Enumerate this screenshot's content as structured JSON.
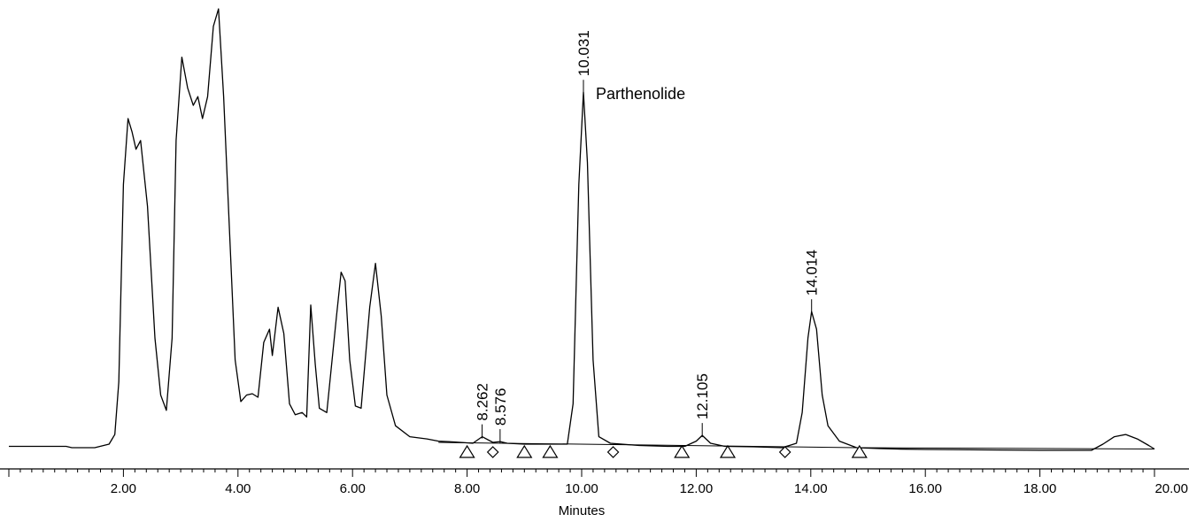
{
  "chart_data": {
    "type": "line",
    "title": "",
    "xlabel": "Minutes",
    "ylabel": "",
    "xlim": [
      0,
      20
    ],
    "ylim": [
      0,
      100
    ],
    "x_ticks": [
      2,
      4,
      6,
      8,
      10,
      12,
      14,
      16,
      18,
      20
    ],
    "x_tick_labels": [
      "2.00",
      "4.00",
      "6.00",
      "8.00",
      "10.00",
      "12.00",
      "14.00",
      "16.00",
      "18.00",
      "20.00"
    ],
    "grid": false,
    "series": [
      {
        "values": [
          [
            0,
            0.3
          ],
          [
            1.0,
            0.3
          ],
          [
            1.1,
            0.0
          ],
          [
            1.5,
            0.0
          ],
          [
            1.75,
            0.8
          ],
          [
            1.85,
            3.0
          ],
          [
            1.92,
            15.0
          ],
          [
            2.0,
            60.0
          ],
          [
            2.08,
            75.0
          ],
          [
            2.15,
            72.0
          ],
          [
            2.22,
            68.0
          ],
          [
            2.3,
            70.0
          ],
          [
            2.42,
            55.0
          ],
          [
            2.55,
            25.0
          ],
          [
            2.65,
            12.0
          ],
          [
            2.75,
            8.5
          ],
          [
            2.85,
            25.0
          ],
          [
            2.92,
            70.0
          ],
          [
            3.02,
            89.0
          ],
          [
            3.12,
            82.0
          ],
          [
            3.22,
            78.0
          ],
          [
            3.3,
            80.0
          ],
          [
            3.38,
            75.0
          ],
          [
            3.47,
            80.0
          ],
          [
            3.57,
            96.0
          ],
          [
            3.66,
            100.0
          ],
          [
            3.75,
            80.0
          ],
          [
            3.85,
            50.0
          ],
          [
            3.95,
            20.0
          ],
          [
            4.05,
            10.5
          ],
          [
            4.15,
            12.0
          ],
          [
            4.25,
            12.3
          ],
          [
            4.35,
            11.5
          ],
          [
            4.45,
            24.0
          ],
          [
            4.55,
            27.0
          ],
          [
            4.6,
            21.0
          ],
          [
            4.7,
            32.0
          ],
          [
            4.8,
            26.0
          ],
          [
            4.9,
            10.0
          ],
          [
            5.0,
            7.5
          ],
          [
            5.12,
            8.0
          ],
          [
            5.2,
            7.0
          ],
          [
            5.27,
            32.5
          ],
          [
            5.35,
            19.0
          ],
          [
            5.42,
            9.0
          ],
          [
            5.55,
            8.0
          ],
          [
            5.72,
            30.0
          ],
          [
            5.8,
            40.0
          ],
          [
            5.87,
            38.0
          ],
          [
            5.95,
            20.0
          ],
          [
            6.05,
            9.5
          ],
          [
            6.15,
            9.0
          ],
          [
            6.3,
            32.0
          ],
          [
            6.4,
            42.0
          ],
          [
            6.5,
            30.0
          ],
          [
            6.6,
            12.0
          ],
          [
            6.75,
            5.0
          ],
          [
            7.0,
            2.5
          ],
          [
            7.3,
            2.0
          ],
          [
            7.5,
            1.5
          ],
          [
            7.8,
            1.3
          ],
          [
            8.1,
            1.0
          ],
          [
            8.262,
            2.5
          ],
          [
            8.45,
            1.2
          ],
          [
            8.576,
            1.4
          ],
          [
            8.7,
            1.0
          ],
          [
            9.0,
            0.8
          ],
          [
            9.5,
            0.8
          ],
          [
            9.75,
            0.8
          ],
          [
            9.85,
            10.0
          ],
          [
            9.95,
            60.0
          ],
          [
            10.031,
            81.0
          ],
          [
            10.1,
            65.0
          ],
          [
            10.2,
            20.0
          ],
          [
            10.3,
            2.5
          ],
          [
            10.5,
            1.0
          ],
          [
            11.0,
            0.5
          ],
          [
            11.5,
            0.3
          ],
          [
            11.8,
            0.3
          ],
          [
            12.0,
            1.5
          ],
          [
            12.105,
            2.8
          ],
          [
            12.25,
            1.0
          ],
          [
            12.5,
            0.3
          ],
          [
            13.0,
            0.2
          ],
          [
            13.5,
            0.0
          ],
          [
            13.75,
            1.0
          ],
          [
            13.85,
            8.0
          ],
          [
            13.95,
            25.0
          ],
          [
            14.014,
            31.0
          ],
          [
            14.1,
            27.0
          ],
          [
            14.2,
            12.0
          ],
          [
            14.3,
            5.0
          ],
          [
            14.5,
            1.5
          ],
          [
            14.8,
            0.0
          ],
          [
            15.2,
            -0.2
          ],
          [
            15.5,
            -0.3
          ],
          [
            16.0,
            -0.4
          ],
          [
            17.0,
            -0.5
          ],
          [
            18.0,
            -0.6
          ],
          [
            18.9,
            -0.6
          ],
          [
            19.1,
            0.8
          ],
          [
            19.3,
            2.5
          ],
          [
            19.5,
            3.0
          ],
          [
            19.7,
            2.0
          ],
          [
            19.9,
            0.5
          ],
          [
            20.0,
            -0.3
          ]
        ]
      }
    ],
    "baseline_segments": [
      [
        [
          7.5,
          1.2
        ],
        [
          14.8,
          0.0
        ]
      ],
      [
        [
          14.8,
          0.0
        ],
        [
          20.0,
          -0.3
        ]
      ]
    ],
    "peak_labels": [
      {
        "x": 8.262,
        "y": 2.5,
        "text": "8.262"
      },
      {
        "x": 8.576,
        "y": 1.4,
        "text": "8.576"
      },
      {
        "x": 10.031,
        "y": 81.0,
        "text": "10.031"
      },
      {
        "x": 12.105,
        "y": 2.8,
        "text": "12.105"
      },
      {
        "x": 14.014,
        "y": 31.0,
        "text": "14.014"
      }
    ],
    "annotations": [
      {
        "x": 10.031,
        "y": 81.0,
        "text": "Parthenolide"
      }
    ],
    "markers": [
      {
        "x": 8.0,
        "shape": "triangle"
      },
      {
        "x": 8.45,
        "shape": "diamond"
      },
      {
        "x": 9.0,
        "shape": "triangle"
      },
      {
        "x": 9.45,
        "shape": "triangle"
      },
      {
        "x": 10.55,
        "shape": "diamond"
      },
      {
        "x": 11.75,
        "shape": "triangle"
      },
      {
        "x": 12.55,
        "shape": "triangle"
      },
      {
        "x": 13.55,
        "shape": "diamond"
      },
      {
        "x": 14.85,
        "shape": "triangle"
      }
    ]
  }
}
